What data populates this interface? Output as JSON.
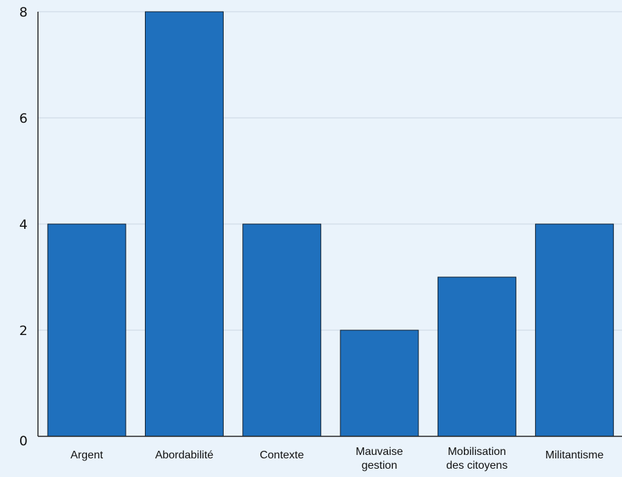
{
  "colors": {
    "background": "#eaf3fb",
    "bar_fill": "#1f70bd",
    "bar_stroke": "#0d1b2a",
    "grid": "#c9d6e2",
    "axis": "#222222"
  },
  "chart_data": {
    "type": "bar",
    "categories": [
      [
        "Argent"
      ],
      [
        "Abordabilité"
      ],
      [
        "Contexte"
      ],
      [
        "Mauvaise",
        "gestion"
      ],
      [
        "Mobilisation",
        "des citoyens"
      ],
      [
        "Militantisme"
      ]
    ],
    "values": [
      4,
      8,
      4,
      2,
      3,
      4
    ],
    "ylim": [
      0,
      8
    ],
    "yticks": [
      "0",
      "2",
      "4",
      "6",
      "8"
    ],
    "grid": true,
    "title": "",
    "xlabel": "",
    "ylabel": ""
  }
}
